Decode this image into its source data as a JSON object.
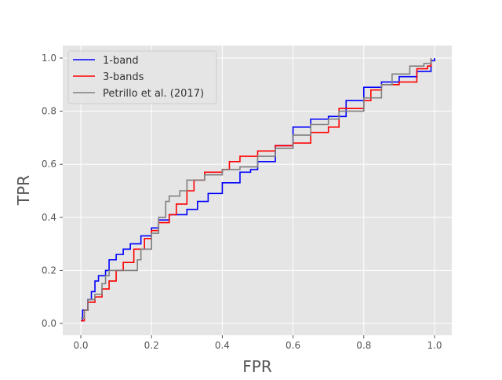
{
  "chart_data": {
    "type": "line",
    "title": "",
    "xlabel": "FPR",
    "ylabel": "TPR",
    "xlim": [
      -0.05,
      1.05
    ],
    "ylim": [
      -0.04,
      1.04
    ],
    "xticks": [
      "0.0",
      "0.2",
      "0.4",
      "0.6",
      "0.8",
      "1.0"
    ],
    "yticks": [
      "0.0",
      "0.2",
      "0.4",
      "0.6",
      "0.8",
      "1.0"
    ],
    "grid": true,
    "legend_position": "top-left",
    "series": [
      {
        "name": "1-band",
        "color": "#0000ff",
        "x": [
          0,
          0.005,
          0.02,
          0.03,
          0.04,
          0.05,
          0.07,
          0.08,
          0.1,
          0.12,
          0.14,
          0.17,
          0.2,
          0.22,
          0.25,
          0.3,
          0.33,
          0.36,
          0.4,
          0.45,
          0.48,
          0.5,
          0.55,
          0.6,
          0.65,
          0.7,
          0.75,
          0.8,
          0.85,
          0.9,
          0.95,
          0.99,
          1.0
        ],
        "y": [
          0.01,
          0.05,
          0.09,
          0.12,
          0.16,
          0.18,
          0.2,
          0.24,
          0.26,
          0.28,
          0.3,
          0.33,
          0.36,
          0.39,
          0.41,
          0.43,
          0.46,
          0.49,
          0.53,
          0.57,
          0.58,
          0.61,
          0.67,
          0.74,
          0.77,
          0.78,
          0.84,
          0.89,
          0.91,
          0.93,
          0.95,
          0.99,
          1.0
        ]
      },
      {
        "name": "3-bands",
        "color": "#ff0000",
        "x": [
          0,
          0.01,
          0.02,
          0.04,
          0.06,
          0.08,
          0.1,
          0.12,
          0.15,
          0.18,
          0.2,
          0.22,
          0.25,
          0.27,
          0.3,
          0.32,
          0.35,
          0.4,
          0.42,
          0.45,
          0.5,
          0.55,
          0.6,
          0.65,
          0.7,
          0.73,
          0.8,
          0.82,
          0.85,
          0.9,
          0.95,
          0.98,
          0.99
        ],
        "y": [
          0.01,
          0.05,
          0.08,
          0.1,
          0.13,
          0.16,
          0.2,
          0.23,
          0.28,
          0.32,
          0.35,
          0.38,
          0.41,
          0.45,
          0.5,
          0.54,
          0.57,
          0.58,
          0.61,
          0.63,
          0.65,
          0.67,
          0.68,
          0.72,
          0.74,
          0.81,
          0.84,
          0.88,
          0.9,
          0.91,
          0.96,
          0.97,
          1.0
        ]
      },
      {
        "name": "Petrillo et al. (2017)",
        "color": "#808080",
        "x": [
          0,
          0.01,
          0.02,
          0.04,
          0.06,
          0.07,
          0.08,
          0.14,
          0.16,
          0.17,
          0.2,
          0.22,
          0.24,
          0.25,
          0.28,
          0.3,
          0.35,
          0.4,
          0.45,
          0.5,
          0.55,
          0.6,
          0.65,
          0.7,
          0.73,
          0.8,
          0.85,
          0.88,
          0.93,
          0.97,
          0.99
        ],
        "y": [
          0.02,
          0.05,
          0.09,
          0.11,
          0.15,
          0.18,
          0.2,
          0.2,
          0.24,
          0.28,
          0.34,
          0.4,
          0.46,
          0.48,
          0.5,
          0.54,
          0.56,
          0.58,
          0.59,
          0.63,
          0.66,
          0.71,
          0.75,
          0.77,
          0.8,
          0.85,
          0.9,
          0.94,
          0.97,
          0.98,
          1.0
        ]
      }
    ]
  }
}
